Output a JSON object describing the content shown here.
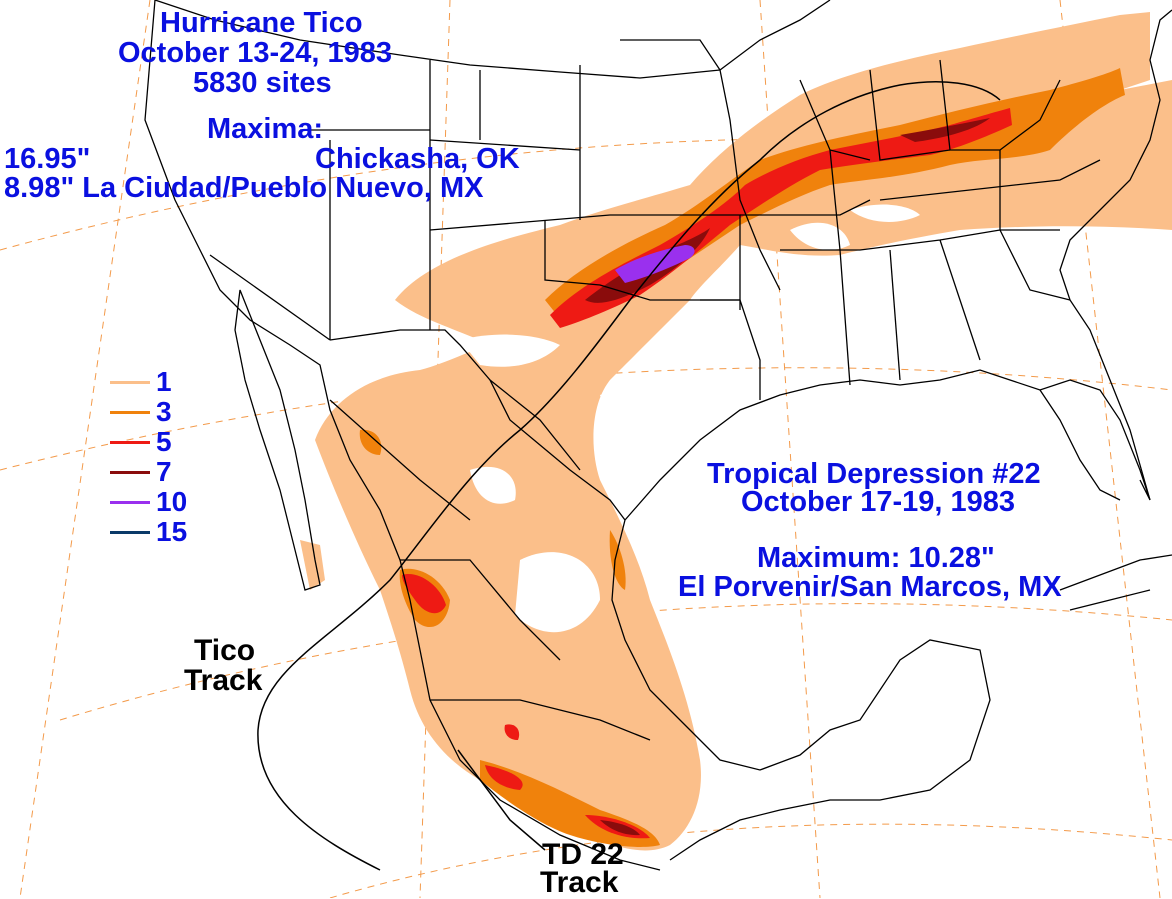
{
  "title": {
    "name": "Hurricane Tico",
    "dates": "October 13-24, 1983",
    "sites": "5830 sites",
    "maxima_label": "Maxima:",
    "max_value_1": "16.95\"",
    "max_location_1": "Chickasha, OK",
    "max_line_2": "8.98\" La Ciudad/Pueblo Nuevo, MX"
  },
  "td22": {
    "name": "Tropical Depression #22",
    "dates": "October 17-19, 1983",
    "maximum": "Maximum:  10.28\"",
    "location": "El Porvenir/San Marcos, MX"
  },
  "tracks": {
    "tico_line1": "Tico",
    "tico_line2": "Track",
    "td_line1": "TD 22",
    "td_line2": "Track"
  },
  "legend": [
    {
      "value": "1",
      "color": "#fbbf8a"
    },
    {
      "value": "3",
      "color": "#f0820c"
    },
    {
      "value": "5",
      "color": "#ee1a14"
    },
    {
      "value": "7",
      "color": "#8a0c0c"
    },
    {
      "value": "10",
      "color": "#9a30ee"
    },
    {
      "value": "15",
      "color": "#0b3a68"
    }
  ],
  "colors": {
    "text": "#0a10e0",
    "grid": "#f39a4a",
    "boundaries": "#000000"
  }
}
